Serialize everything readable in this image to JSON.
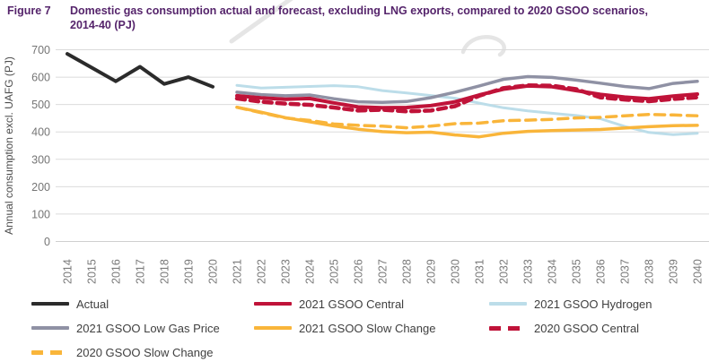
{
  "header": {
    "figure_label": "Figure 7",
    "title": "Domestic gas consumption actual and forecast, excluding LNG exports, compared to 2020 GSOO scenarios, 2014-40 (PJ)"
  },
  "chart_data": {
    "type": "line",
    "title": "Domestic gas consumption actual and forecast, excluding LNG exports, compared to 2020 GSOO scenarios, 2014-40 (PJ)",
    "xlabel": "",
    "ylabel": "Annual consumption excl. UAFG (PJ)",
    "x_start": 2014,
    "x_end": 2040,
    "ylim": [
      0,
      700
    ],
    "y_ticks": [
      0,
      100,
      200,
      300,
      400,
      500,
      600,
      700
    ],
    "grid": true,
    "legend_position": "bottom",
    "units": "PJ",
    "series": [
      {
        "id": "hydrogen-2021",
        "name": "2021 GSOO Hydrogen",
        "color": "#BCDDE9",
        "width": 3,
        "dash": "",
        "start_year": 2021,
        "values": [
          570,
          560,
          563,
          566,
          569,
          565,
          551,
          542,
          533,
          523,
          505,
          488,
          477,
          468,
          460,
          448,
          420,
          398,
          390,
          395
        ]
      },
      {
        "id": "low-gas-price-2021",
        "name": "2021 GSOO Low Gas Price",
        "color": "#8F91A4",
        "width": 3.5,
        "dash": "",
        "start_year": 2021,
        "values": [
          545,
          536,
          532,
          535,
          521,
          510,
          508,
          511,
          525,
          545,
          568,
          592,
          602,
          599,
          589,
          578,
          566,
          558,
          577,
          585
        ]
      },
      {
        "id": "slow-change-2021",
        "name": "2021 GSOO Slow Change",
        "color": "#F9B53A",
        "width": 3.5,
        "dash": "",
        "start_year": 2021,
        "values": [
          490,
          472,
          452,
          437,
          422,
          410,
          401,
          397,
          399,
          389,
          382,
          395,
          402,
          405,
          407,
          409,
          414,
          419,
          423,
          424
        ]
      },
      {
        "id": "slow-change-2020",
        "name": "2020 GSOO Slow Change",
        "color": "#F9B53A",
        "width": 3.5,
        "dash": "11 7",
        "start_year": 2021,
        "values": [
          490,
          470,
          451,
          442,
          429,
          424,
          421,
          415,
          421,
          430,
          432,
          441,
          443,
          446,
          451,
          453,
          459,
          464,
          462,
          459
        ]
      },
      {
        "id": "central-2021",
        "name": "2021 GSOO Central",
        "color": "#C01339",
        "width": 4,
        "dash": "",
        "start_year": 2021,
        "values": [
          532,
          524,
          519,
          522,
          506,
          491,
          488,
          489,
          496,
          510,
          535,
          556,
          568,
          565,
          551,
          537,
          527,
          521,
          531,
          538
        ]
      },
      {
        "id": "central-2020",
        "name": "2020 GSOO Central",
        "color": "#C01339",
        "width": 4.5,
        "dash": "9 6",
        "start_year": 2021,
        "values": [
          522,
          510,
          503,
          499,
          489,
          478,
          481,
          475,
          478,
          494,
          532,
          560,
          570,
          569,
          556,
          526,
          518,
          512,
          520,
          526
        ]
      },
      {
        "id": "actual",
        "name": "Actual",
        "color": "#2B2B2B",
        "width": 4,
        "dash": "",
        "start_year": 2014,
        "values": [
          685,
          635,
          585,
          638,
          575,
          600,
          565
        ]
      }
    ]
  },
  "legend": {
    "items": [
      {
        "id": "actual",
        "label": "Actual",
        "color": "#2B2B2B",
        "dash": false
      },
      {
        "id": "central-2021",
        "label": "2021 GSOO Central",
        "color": "#C01339",
        "dash": false
      },
      {
        "id": "hydrogen-2021",
        "label": "2021 GSOO Hydrogen",
        "color": "#BCDDE9",
        "dash": false
      },
      {
        "id": "low-gas-price-2021",
        "label": "2021 GSOO Low Gas Price",
        "color": "#8F91A4",
        "dash": false
      },
      {
        "id": "slow-change-2021",
        "label": "2021 GSOO Slow Change",
        "color": "#F9B53A",
        "dash": false
      },
      {
        "id": "central-2020",
        "label": "2020 GSOO Central",
        "color": "#C01339",
        "dash": true
      },
      {
        "id": "slow-change-2020",
        "label": "2020 GSOO Slow Change",
        "color": "#F9B53A",
        "dash": true
      }
    ]
  }
}
